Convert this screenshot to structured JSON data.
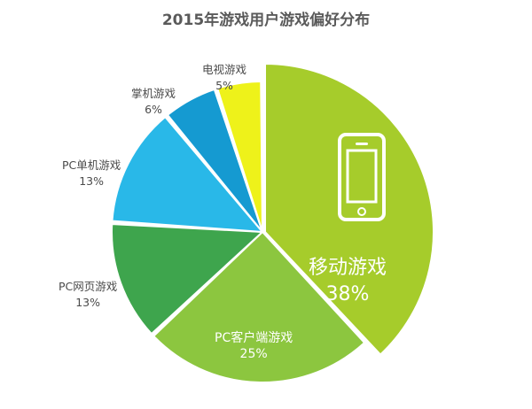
{
  "chart_data": {
    "type": "pie",
    "title": "2015年游戏用户游戏偏好分布",
    "slices": [
      {
        "label": "移动游戏",
        "value": 38,
        "value_text": "38%",
        "color": "#a6cc2b"
      },
      {
        "label": "PC客户端游戏",
        "value": 25,
        "value_text": "25%",
        "color": "#8cc63f"
      },
      {
        "label": "PC网页游戏",
        "value": 13,
        "value_text": "13%",
        "color": "#3ea54d"
      },
      {
        "label": "PC单机游戏",
        "value": 13,
        "value_text": "13%",
        "color": "#29b8e8"
      },
      {
        "label": "掌机游戏",
        "value": 6,
        "value_text": "6%",
        "color": "#159ad1"
      },
      {
        "label": "电视游戏",
        "value": 5,
        "value_text": "5%",
        "color": "#eef21a"
      }
    ],
    "highlighted_slice": "移动游戏",
    "legend": "none"
  },
  "icons": {
    "mobile_slice_icon": "smartphone-icon"
  }
}
